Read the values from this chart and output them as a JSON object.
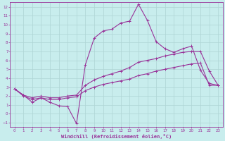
{
  "title": "",
  "xlabel": "Windchill (Refroidissement éolien,°C)",
  "ylabel": "",
  "background_color": "#c8eded",
  "grid_color": "#aed4d4",
  "line_color": "#993399",
  "xlim": [
    -0.5,
    23.5
  ],
  "ylim": [
    -1.5,
    12.5
  ],
  "xticks": [
    0,
    1,
    2,
    3,
    4,
    5,
    6,
    7,
    8,
    9,
    10,
    11,
    12,
    13,
    14,
    15,
    16,
    17,
    18,
    19,
    20,
    21,
    22,
    23
  ],
  "yticks": [
    -1,
    0,
    1,
    2,
    3,
    4,
    5,
    6,
    7,
    8,
    9,
    10,
    11,
    12
  ],
  "series1_x": [
    0,
    1,
    2,
    3,
    4,
    5,
    6,
    7,
    8,
    9,
    10,
    11,
    12,
    13,
    14,
    15,
    16,
    17,
    18,
    19,
    20,
    21,
    22,
    23
  ],
  "series1_y": [
    2.8,
    2.1,
    1.3,
    1.8,
    1.3,
    0.9,
    0.8,
    -1.1,
    5.5,
    8.5,
    9.3,
    9.5,
    10.2,
    10.4,
    12.3,
    10.5,
    8.1,
    7.3,
    6.9,
    7.3,
    7.6,
    4.9,
    3.4,
    3.2
  ],
  "series2_x": [
    0,
    1,
    2,
    3,
    4,
    5,
    6,
    7,
    8,
    9,
    10,
    11,
    12,
    13,
    14,
    15,
    16,
    17,
    18,
    19,
    20,
    21,
    22,
    23
  ],
  "series2_y": [
    2.8,
    2.1,
    1.8,
    2.0,
    1.8,
    1.8,
    2.0,
    2.1,
    3.2,
    3.8,
    4.2,
    4.5,
    4.8,
    5.2,
    5.8,
    6.0,
    6.2,
    6.5,
    6.7,
    6.9,
    7.0,
    7.0,
    4.8,
    3.2
  ],
  "series3_x": [
    0,
    1,
    2,
    3,
    4,
    5,
    6,
    7,
    8,
    9,
    10,
    11,
    12,
    13,
    14,
    15,
    16,
    17,
    18,
    19,
    20,
    21,
    22,
    23
  ],
  "series3_y": [
    2.8,
    2.0,
    1.6,
    1.8,
    1.6,
    1.6,
    1.8,
    1.9,
    2.6,
    3.0,
    3.3,
    3.5,
    3.7,
    3.9,
    4.3,
    4.5,
    4.8,
    5.0,
    5.2,
    5.4,
    5.6,
    5.7,
    3.2,
    3.2
  ]
}
